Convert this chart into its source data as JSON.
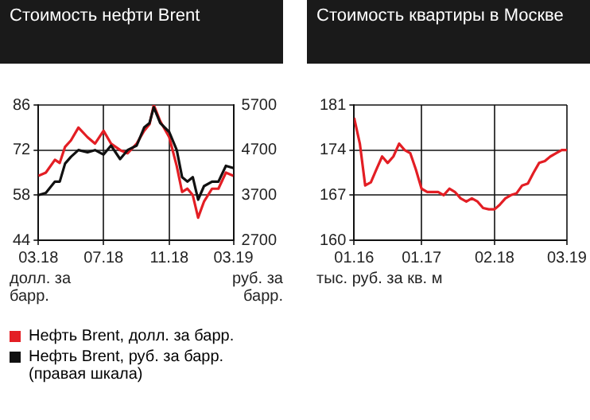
{
  "chart_data": [
    {
      "type": "line",
      "title": "Стоимость нефти Brent",
      "ylabel": "долл. за барр.",
      "y2label": "руб. за барр.",
      "legend": "bottom",
      "grid": true,
      "xlim": [
        "2018-03-01",
        "2019-03-01"
      ],
      "xticks": [
        {
          "value": "2018-03-01",
          "label": "03.18"
        },
        {
          "value": "2018-07-01",
          "label": "07.18"
        },
        {
          "value": "2018-11-01",
          "label": "11.18"
        },
        {
          "value": "2019-03-01",
          "label": "03.19"
        }
      ],
      "ylim": [
        44,
        86
      ],
      "yticks": [
        44,
        58,
        72,
        86
      ],
      "y2lim": [
        2700,
        5700
      ],
      "y2ticks": [
        2700,
        3700,
        4700,
        5700
      ],
      "series": [
        {
          "name": "Нефть Brent, руб. за барр. (правая шкала)",
          "color": "#111111",
          "axis": "y2",
          "x": [
            "2018-03-01",
            "2018-03-15",
            "2018-04-01",
            "2018-04-10",
            "2018-04-20",
            "2018-05-01",
            "2018-05-15",
            "2018-06-01",
            "2018-06-15",
            "2018-07-01",
            "2018-07-15",
            "2018-08-01",
            "2018-08-15",
            "2018-09-01",
            "2018-09-15",
            "2018-09-25",
            "2018-10-03",
            "2018-10-15",
            "2018-11-01",
            "2018-11-15",
            "2018-11-25",
            "2018-12-05",
            "2018-12-15",
            "2018-12-25",
            "2019-01-05",
            "2019-01-20",
            "2019-02-01",
            "2019-02-15",
            "2019-03-01"
          ],
          "values": [
            3700,
            3750,
            4000,
            4000,
            4400,
            4550,
            4700,
            4650,
            4700,
            4600,
            4800,
            4500,
            4700,
            4800,
            5200,
            5300,
            5650,
            5300,
            5100,
            4700,
            4100,
            4000,
            4100,
            3600,
            3900,
            4000,
            4000,
            4350,
            4300
          ]
        },
        {
          "name": "Нефть Brent, долл. за барр.",
          "color": "#e31e24",
          "x": [
            "2018-03-01",
            "2018-03-15",
            "2018-04-01",
            "2018-04-10",
            "2018-04-20",
            "2018-05-01",
            "2018-05-15",
            "2018-06-01",
            "2018-06-15",
            "2018-07-01",
            "2018-07-15",
            "2018-08-01",
            "2018-08-15",
            "2018-09-01",
            "2018-09-15",
            "2018-09-25",
            "2018-10-03",
            "2018-10-15",
            "2018-11-01",
            "2018-11-15",
            "2018-11-25",
            "2018-12-05",
            "2018-12-15",
            "2018-12-25",
            "2019-01-05",
            "2019-01-20",
            "2019-02-01",
            "2019-02-15",
            "2019-03-01"
          ],
          "values": [
            64,
            65,
            69,
            68,
            73,
            75,
            79,
            76,
            74,
            78,
            74,
            72,
            71,
            74,
            78,
            80,
            86,
            81,
            76,
            67,
            59,
            60,
            58,
            51,
            56,
            60,
            60,
            65,
            64
          ]
        }
      ]
    },
    {
      "type": "line",
      "title": "Стоимость квартиры в Москве",
      "ylabel": "тыс. руб. за кв. м",
      "grid": true,
      "xlim": [
        "2016-01-01",
        "2019-03-01"
      ],
      "xticks": [
        {
          "value": "2016-01-01",
          "label": "01.16"
        },
        {
          "value": "2017-01-01",
          "label": "01.17"
        },
        {
          "value": "2018-02-01",
          "label": "02.18"
        },
        {
          "value": "2019-03-01",
          "label": "03.19"
        }
      ],
      "ylim": [
        160,
        181
      ],
      "yticks": [
        160,
        167,
        174,
        181
      ],
      "series": [
        {
          "color": "#e31e24",
          "x": [
            "2016-01-01",
            "2016-02-01",
            "2016-03-01",
            "2016-04-01",
            "2016-05-01",
            "2016-06-01",
            "2016-07-01",
            "2016-08-01",
            "2016-09-01",
            "2016-10-01",
            "2016-11-01",
            "2016-12-01",
            "2017-01-01",
            "2017-02-01",
            "2017-03-01",
            "2017-04-01",
            "2017-05-01",
            "2017-06-01",
            "2017-07-01",
            "2017-08-01",
            "2017-09-01",
            "2017-10-01",
            "2017-11-01",
            "2017-12-01",
            "2018-01-01",
            "2018-02-01",
            "2018-03-01",
            "2018-04-01",
            "2018-05-01",
            "2018-06-01",
            "2018-07-01",
            "2018-08-01",
            "2018-09-01",
            "2018-10-01",
            "2018-11-01",
            "2018-12-01",
            "2019-01-01",
            "2019-02-01",
            "2019-03-01"
          ],
          "values": [
            179,
            175,
            168.5,
            169,
            171,
            173,
            172,
            173,
            175,
            174,
            173.5,
            171,
            168,
            167.5,
            167.5,
            167.5,
            167,
            168,
            167.5,
            166.5,
            166,
            166.5,
            166,
            165,
            164.8,
            164.8,
            165.5,
            166.5,
            167,
            167.3,
            168.5,
            168.8,
            170.5,
            172,
            172.3,
            173,
            173.5,
            174,
            174
          ]
        }
      ]
    }
  ]
}
